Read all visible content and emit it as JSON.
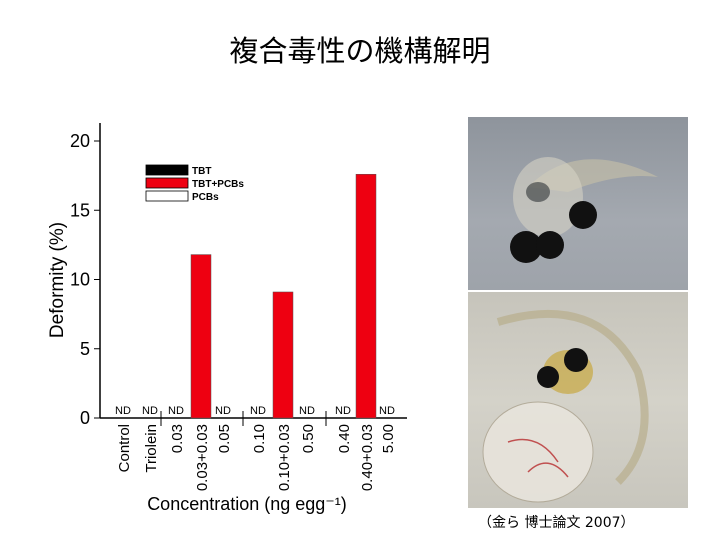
{
  "title": "複合毒性の機構解明",
  "caption": "（金ら  博士論文 2007）",
  "chart_data": {
    "type": "bar",
    "title": "",
    "xlabel": "Concentration (ng egg⁻¹)",
    "ylabel": "Deformity (%)",
    "ylim": [
      0,
      20
    ],
    "yticks": [
      0,
      5,
      10,
      15,
      20
    ],
    "categories": [
      "Control",
      "Triolein",
      "0.03",
      "0.03+0.03",
      "0.05",
      "0.10",
      "0.10+0.03",
      "0.50",
      "0.40",
      "0.40+0.03",
      "5.00"
    ],
    "series": [
      {
        "name": "TBT",
        "color": "#000000",
        "values": [
          0,
          0,
          0,
          null,
          null,
          0,
          null,
          null,
          0,
          null,
          null
        ]
      },
      {
        "name": "TBT+PCBs",
        "color": "#ee0011",
        "values": [
          null,
          null,
          null,
          11.8,
          null,
          null,
          9.1,
          null,
          null,
          17.6,
          null
        ]
      },
      {
        "name": "PCBs",
        "color": "#ffffff",
        "values": [
          null,
          null,
          null,
          null,
          0,
          null,
          null,
          0,
          null,
          null,
          0
        ]
      }
    ],
    "point_labels": [
      "ND",
      "ND",
      "ND",
      "",
      "ND",
      "ND",
      "",
      "ND",
      "ND",
      "",
      "ND"
    ],
    "legend": [
      "TBT",
      "TBT+PCBs",
      "PCBs"
    ],
    "legend_position": "top-left",
    "grid": false
  }
}
